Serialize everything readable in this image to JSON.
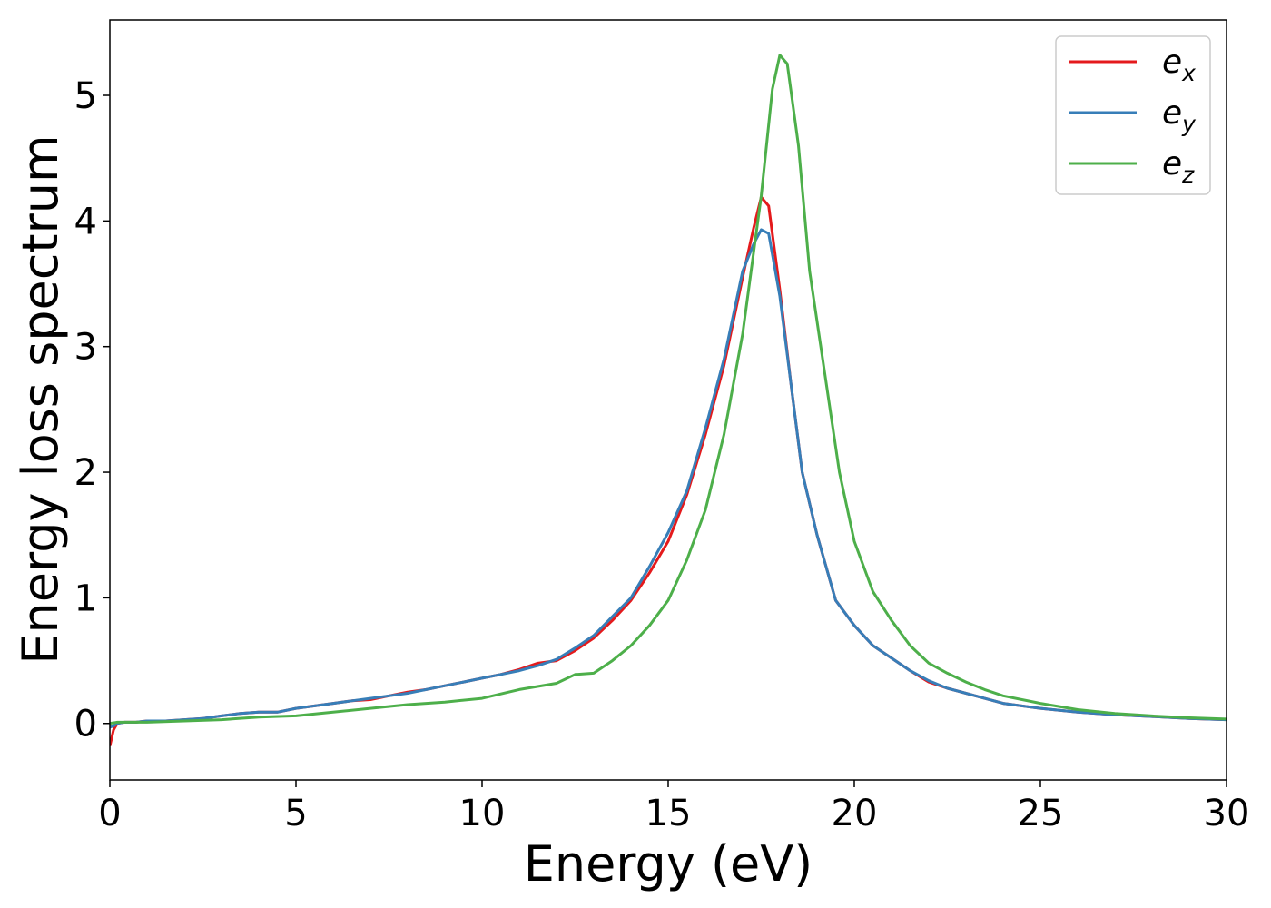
{
  "chart_data": {
    "type": "line",
    "title": "",
    "xlabel": "Energy (eV)",
    "ylabel": "Energy loss spectrum",
    "xlim": [
      0,
      30
    ],
    "ylim": [
      -0.45,
      5.6
    ],
    "xticks": [
      0,
      5,
      10,
      15,
      20,
      25,
      30
    ],
    "yticks": [
      0,
      1,
      2,
      3,
      4,
      5
    ],
    "grid": false,
    "legend_position": "top-right",
    "series": [
      {
        "name": "e",
        "subscript": "x",
        "color": "#e41a1c",
        "x": [
          0,
          0.1,
          0.2,
          0.4,
          0.7,
          1,
          1.5,
          2,
          2.5,
          3,
          3.5,
          4,
          4.5,
          5,
          5.5,
          6,
          6.5,
          7,
          7.5,
          8,
          8.5,
          9,
          9.5,
          10,
          10.5,
          11,
          11.5,
          12,
          12.5,
          13,
          13.5,
          14,
          14.5,
          15,
          15.5,
          16,
          16.5,
          17,
          17.3,
          17.5,
          17.7,
          18,
          18.3,
          18.6,
          19,
          19.5,
          20,
          20.5,
          21,
          21.5,
          22,
          22.5,
          23,
          23.5,
          24,
          25,
          26,
          27,
          28,
          29,
          30
        ],
        "y": [
          -0.18,
          -0.05,
          0.0,
          0.01,
          0.01,
          0.02,
          0.02,
          0.03,
          0.04,
          0.06,
          0.08,
          0.09,
          0.09,
          0.12,
          0.14,
          0.16,
          0.18,
          0.19,
          0.22,
          0.25,
          0.27,
          0.3,
          0.33,
          0.36,
          0.39,
          0.43,
          0.48,
          0.5,
          0.58,
          0.68,
          0.82,
          0.98,
          1.2,
          1.45,
          1.82,
          2.3,
          2.85,
          3.55,
          3.95,
          4.19,
          4.12,
          3.45,
          2.7,
          2.0,
          1.5,
          0.98,
          0.78,
          0.62,
          0.52,
          0.42,
          0.33,
          0.28,
          0.24,
          0.2,
          0.16,
          0.12,
          0.09,
          0.07,
          0.055,
          0.04,
          0.03
        ]
      },
      {
        "name": "e",
        "subscript": "y",
        "color": "#377eb8",
        "x": [
          0,
          0.1,
          0.2,
          0.4,
          0.7,
          1,
          1.5,
          2,
          2.5,
          3,
          3.5,
          4,
          4.5,
          5,
          5.5,
          6,
          6.5,
          7,
          7.5,
          8,
          8.5,
          9,
          9.5,
          10,
          10.5,
          11,
          11.5,
          12,
          12.5,
          13,
          13.5,
          14,
          14.5,
          15,
          15.5,
          16,
          16.5,
          17,
          17.3,
          17.5,
          17.7,
          18,
          18.3,
          18.6,
          19,
          19.5,
          20,
          20.5,
          21,
          21.5,
          22,
          22.5,
          23,
          23.5,
          24,
          25,
          26,
          27,
          28,
          29,
          30
        ],
        "y": [
          -0.03,
          -0.02,
          0.0,
          0.01,
          0.01,
          0.02,
          0.02,
          0.03,
          0.04,
          0.06,
          0.08,
          0.09,
          0.09,
          0.12,
          0.14,
          0.16,
          0.18,
          0.2,
          0.22,
          0.24,
          0.27,
          0.3,
          0.33,
          0.36,
          0.39,
          0.42,
          0.46,
          0.51,
          0.6,
          0.7,
          0.85,
          1.0,
          1.25,
          1.52,
          1.85,
          2.35,
          2.9,
          3.6,
          3.82,
          3.93,
          3.9,
          3.4,
          2.7,
          2.0,
          1.5,
          0.98,
          0.78,
          0.62,
          0.52,
          0.42,
          0.34,
          0.28,
          0.24,
          0.2,
          0.16,
          0.12,
          0.09,
          0.07,
          0.055,
          0.04,
          0.03
        ]
      },
      {
        "name": "e",
        "subscript": "z",
        "color": "#4daf4a",
        "x": [
          0,
          0.2,
          0.4,
          1,
          2,
          3,
          4,
          5,
          6,
          7,
          8,
          9,
          10,
          11,
          12,
          12.5,
          13,
          13.5,
          14,
          14.5,
          15,
          15.5,
          16,
          16.5,
          17,
          17.5,
          17.8,
          18,
          18.2,
          18.5,
          18.8,
          19.2,
          19.6,
          20,
          20.5,
          21,
          21.5,
          22,
          22.5,
          23,
          23.5,
          24,
          25,
          26,
          27,
          28,
          29,
          30
        ],
        "y": [
          0.0,
          0.01,
          0.01,
          0.01,
          0.02,
          0.03,
          0.05,
          0.06,
          0.09,
          0.12,
          0.15,
          0.17,
          0.2,
          0.27,
          0.32,
          0.39,
          0.4,
          0.5,
          0.62,
          0.78,
          0.98,
          1.3,
          1.7,
          2.3,
          3.1,
          4.2,
          5.05,
          5.32,
          5.25,
          4.6,
          3.6,
          2.8,
          2.0,
          1.45,
          1.05,
          0.82,
          0.62,
          0.48,
          0.4,
          0.33,
          0.27,
          0.22,
          0.16,
          0.11,
          0.08,
          0.06,
          0.045,
          0.035
        ]
      }
    ]
  }
}
